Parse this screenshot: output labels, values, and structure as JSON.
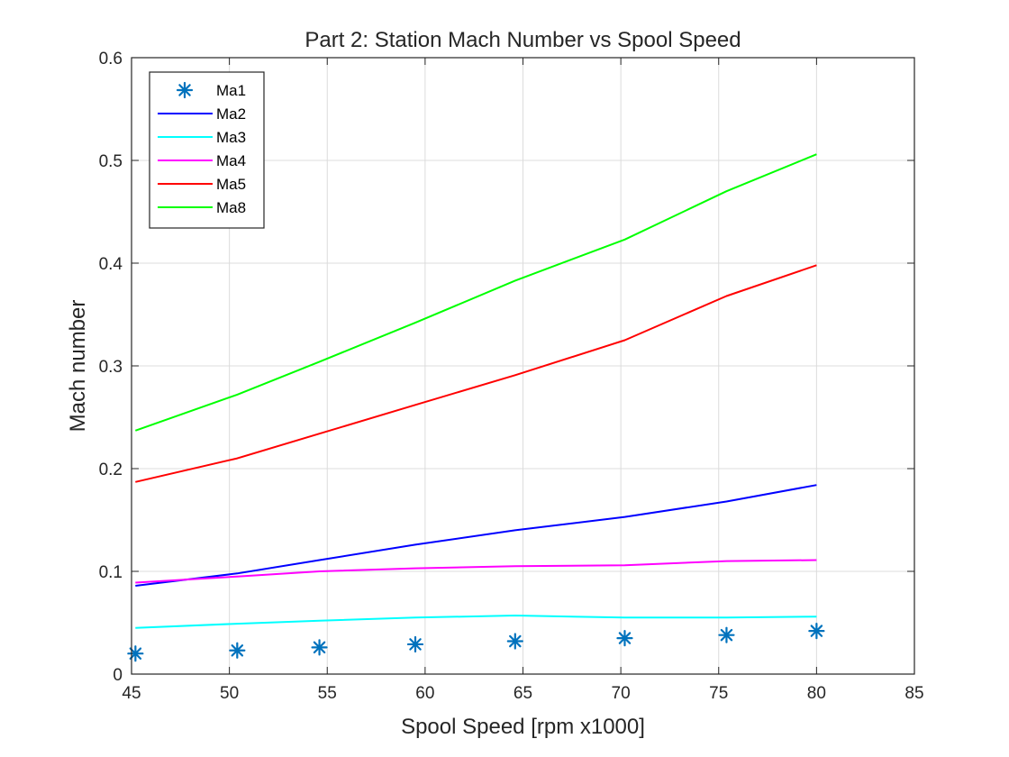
{
  "chart_data": {
    "type": "line",
    "title": "Part 2: Station Mach Number vs Spool Speed",
    "xlabel": "Spool Speed [rpm x1000]",
    "ylabel": "Mach number",
    "xlim": [
      45,
      85
    ],
    "ylim": [
      0,
      0.6
    ],
    "xticks": [
      45,
      50,
      55,
      60,
      65,
      70,
      75,
      80,
      85
    ],
    "yticks": [
      0,
      0.1,
      0.2,
      0.3,
      0.4,
      0.5,
      0.6
    ],
    "xtick_labels": [
      "45",
      "50",
      "55",
      "60",
      "65",
      "70",
      "75",
      "80",
      "85"
    ],
    "ytick_labels": [
      "0",
      "0.1",
      "0.2",
      "0.3",
      "0.4",
      "0.5",
      "0.6"
    ],
    "grid": true,
    "legend_position": "top-left",
    "x": [
      45.2,
      50.4,
      54.6,
      59.5,
      64.6,
      70.2,
      75.4,
      80.0
    ],
    "series": [
      {
        "name": "Ma1",
        "style": "marker",
        "marker": "asterisk",
        "color": "#0072bd",
        "values": [
          0.02,
          0.023,
          0.026,
          0.029,
          0.032,
          0.035,
          0.038,
          0.042
        ]
      },
      {
        "name": "Ma2",
        "style": "line",
        "color": "#0000ff",
        "values": [
          0.086,
          0.098,
          0.111,
          0.126,
          0.14,
          0.153,
          0.168,
          0.184
        ]
      },
      {
        "name": "Ma3",
        "style": "line",
        "color": "#00ffff",
        "values": [
          0.045,
          0.049,
          0.052,
          0.055,
          0.057,
          0.055,
          0.055,
          0.056
        ]
      },
      {
        "name": "Ma4",
        "style": "line",
        "color": "#ff00ff",
        "values": [
          0.089,
          0.095,
          0.1,
          0.103,
          0.105,
          0.106,
          0.11,
          0.111
        ]
      },
      {
        "name": "Ma5",
        "style": "line",
        "color": "#ff0000",
        "values": [
          0.187,
          0.21,
          0.234,
          0.262,
          0.291,
          0.325,
          0.368,
          0.398
        ]
      },
      {
        "name": "Ma8",
        "style": "line",
        "color": "#00ff00",
        "values": [
          0.237,
          0.272,
          0.304,
          0.342,
          0.383,
          0.423,
          0.47,
          0.506
        ]
      }
    ]
  }
}
